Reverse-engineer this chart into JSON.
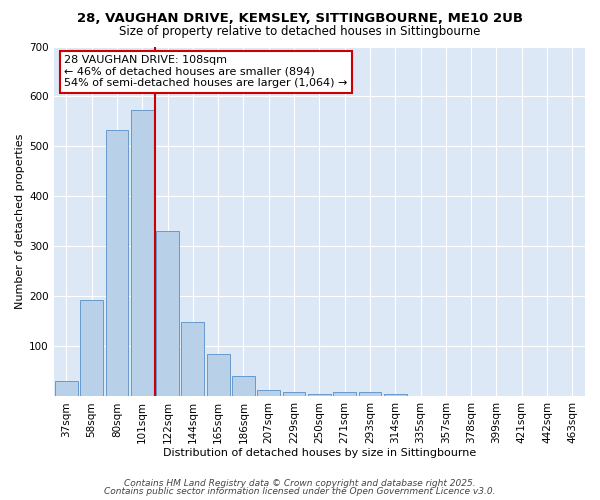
{
  "title1": "28, VAUGHAN DRIVE, KEMSLEY, SITTINGBOURNE, ME10 2UB",
  "title2": "Size of property relative to detached houses in Sittingbourne",
  "xlabel": "Distribution of detached houses by size in Sittingbourne",
  "ylabel": "Number of detached properties",
  "categories": [
    "37sqm",
    "58sqm",
    "80sqm",
    "101sqm",
    "122sqm",
    "144sqm",
    "165sqm",
    "186sqm",
    "207sqm",
    "229sqm",
    "250sqm",
    "271sqm",
    "293sqm",
    "314sqm",
    "335sqm",
    "357sqm",
    "378sqm",
    "399sqm",
    "421sqm",
    "442sqm",
    "463sqm"
  ],
  "values": [
    30,
    193,
    533,
    573,
    330,
    148,
    85,
    40,
    12,
    8,
    5,
    8,
    8,
    4,
    1,
    0,
    0,
    0,
    0,
    0,
    0
  ],
  "bar_color": "#b8d0e8",
  "bar_edge_color": "#6699cc",
  "vline_x": 3.5,
  "vline_color": "#cc0000",
  "annotation_line1": "28 VAUGHAN DRIVE: 108sqm",
  "annotation_line2": "← 46% of detached houses are smaller (894)",
  "annotation_line3": "54% of semi-detached houses are larger (1,064) →",
  "annotation_box_color": "#ffffff",
  "annotation_box_edge": "#cc0000",
  "ylim": [
    0,
    700
  ],
  "yticks": [
    0,
    100,
    200,
    300,
    400,
    500,
    600,
    700
  ],
  "plot_bg_color": "#dce8f5",
  "fig_bg_color": "#ffffff",
  "footer1": "Contains HM Land Registry data © Crown copyright and database right 2025.",
  "footer2": "Contains public sector information licensed under the Open Government Licence v3.0.",
  "title1_fontsize": 9.5,
  "title2_fontsize": 8.5,
  "xlabel_fontsize": 8,
  "ylabel_fontsize": 8,
  "tick_fontsize": 7.5,
  "footer_fontsize": 6.5,
  "ann_fontsize": 8
}
